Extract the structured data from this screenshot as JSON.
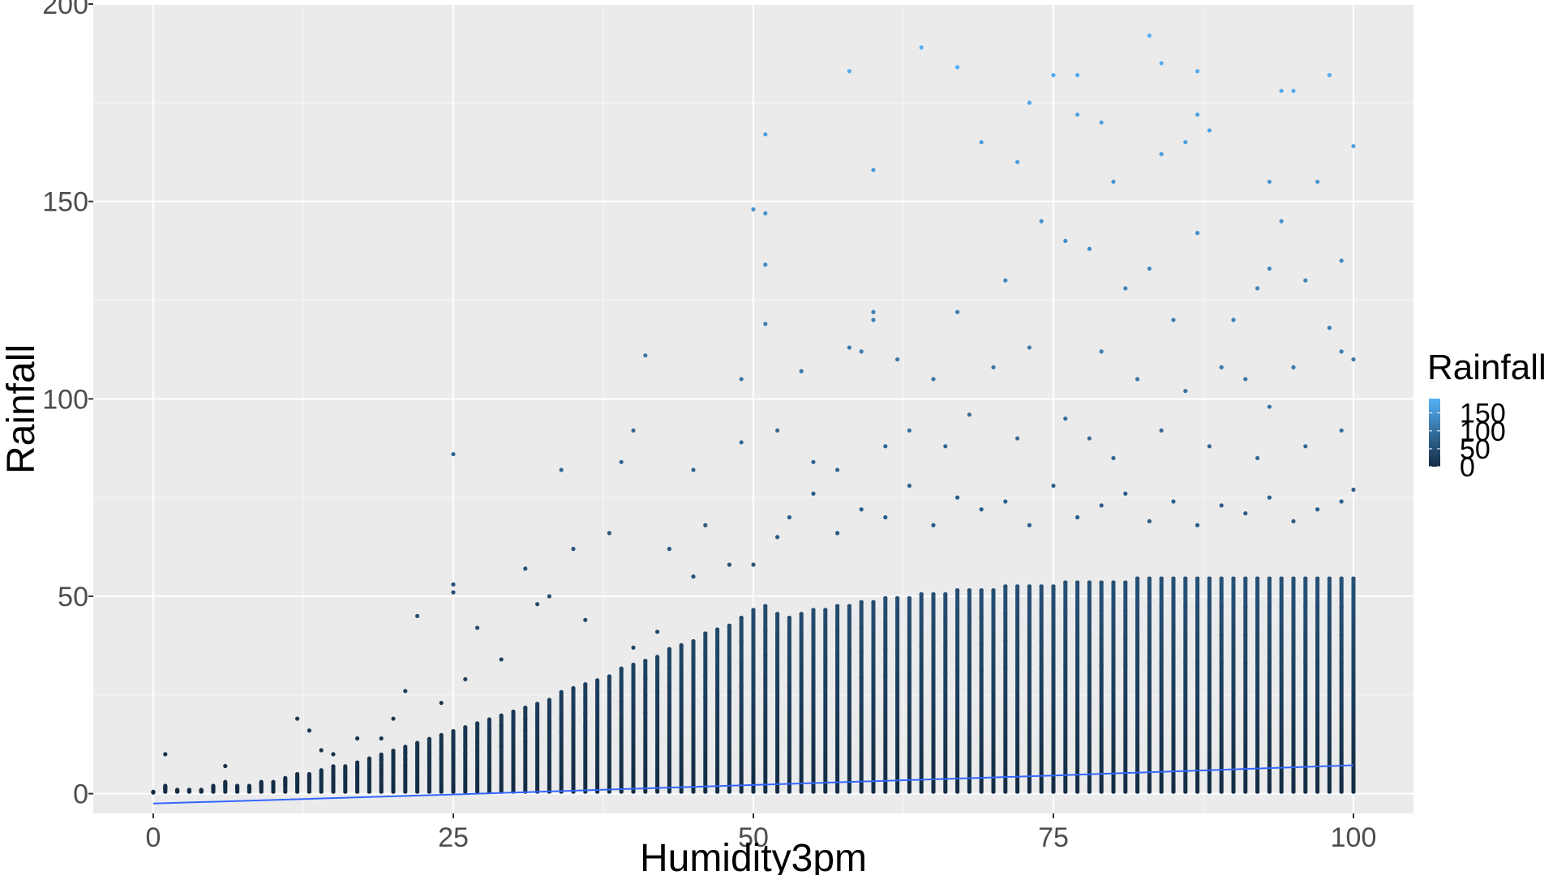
{
  "chart_data": {
    "type": "scatter",
    "title": "",
    "xlabel": "Humidity3pm",
    "ylabel": "Rainfall",
    "xlim": [
      -5,
      105
    ],
    "ylim": [
      -5,
      200
    ],
    "x_ticks": [
      0,
      25,
      50,
      75,
      100
    ],
    "y_ticks": [
      0,
      50,
      100,
      150,
      200
    ],
    "x_tick_labels": [
      "0",
      "25",
      "50",
      "75",
      "100"
    ],
    "y_tick_labels": [
      "0",
      "50",
      "100",
      "150",
      "200"
    ],
    "grid": true,
    "legend": {
      "title": "Rainfall",
      "placement": "right",
      "type": "colorbar",
      "labels": [
        "150",
        "100",
        "50",
        "0"
      ],
      "range": [
        0,
        190
      ]
    },
    "colors": {
      "panel_background": "#ebebeb",
      "grid_major": "#ffffff",
      "low": "#132B43",
      "high": "#56B1F7",
      "trend_line": "#3366FF"
    },
    "series": [
      {
        "kind": "points",
        "note_colour_by": "y",
        "points": [
          [
            58,
            183
          ],
          [
            64,
            189
          ],
          [
            67,
            184
          ],
          [
            75,
            182
          ],
          [
            77,
            182
          ],
          [
            83,
            192
          ],
          [
            84,
            185
          ],
          [
            87,
            183
          ],
          [
            98,
            182
          ],
          [
            51,
            167
          ],
          [
            50,
            148
          ],
          [
            51,
            147
          ],
          [
            60,
            158
          ],
          [
            69,
            165
          ],
          [
            72,
            160
          ],
          [
            73,
            175
          ],
          [
            77,
            172
          ],
          [
            79,
            170
          ],
          [
            80,
            155
          ],
          [
            84,
            162
          ],
          [
            86,
            165
          ],
          [
            87,
            172
          ],
          [
            88,
            168
          ],
          [
            93,
            155
          ],
          [
            94,
            178
          ],
          [
            95,
            178
          ],
          [
            97,
            155
          ],
          [
            100,
            164
          ],
          [
            51,
            134
          ],
          [
            60,
            122
          ],
          [
            60,
            120
          ],
          [
            62,
            110
          ],
          [
            67,
            122
          ],
          [
            71,
            130
          ],
          [
            74,
            145
          ],
          [
            76,
            140
          ],
          [
            78,
            138
          ],
          [
            81,
            128
          ],
          [
            83,
            133
          ],
          [
            85,
            120
          ],
          [
            87,
            142
          ],
          [
            90,
            120
          ],
          [
            92,
            128
          ],
          [
            93,
            133
          ],
          [
            94,
            145
          ],
          [
            96,
            130
          ],
          [
            98,
            118
          ],
          [
            99,
            135
          ],
          [
            41,
            111
          ],
          [
            51,
            119
          ],
          [
            49,
            105
          ],
          [
            54,
            107
          ],
          [
            58,
            113
          ],
          [
            59,
            112
          ],
          [
            65,
            105
          ],
          [
            70,
            108
          ],
          [
            73,
            113
          ],
          [
            79,
            112
          ],
          [
            82,
            105
          ],
          [
            86,
            102
          ],
          [
            89,
            108
          ],
          [
            91,
            105
          ],
          [
            93,
            98
          ],
          [
            95,
            108
          ],
          [
            99,
            112
          ],
          [
            100,
            110
          ],
          [
            25,
            86
          ],
          [
            34,
            82
          ],
          [
            39,
            84
          ],
          [
            40,
            92
          ],
          [
            45,
            82
          ],
          [
            49,
            89
          ],
          [
            52,
            92
          ],
          [
            55,
            84
          ],
          [
            57,
            82
          ],
          [
            61,
            88
          ],
          [
            63,
            92
          ],
          [
            66,
            88
          ],
          [
            68,
            96
          ],
          [
            72,
            90
          ],
          [
            76,
            95
          ],
          [
            78,
            90
          ],
          [
            80,
            85
          ],
          [
            84,
            92
          ],
          [
            88,
            88
          ],
          [
            92,
            85
          ],
          [
            96,
            88
          ],
          [
            99,
            92
          ],
          [
            1,
            10
          ],
          [
            6,
            7
          ],
          [
            12,
            19
          ],
          [
            13,
            16
          ],
          [
            14,
            11
          ],
          [
            15,
            10
          ],
          [
            17,
            14
          ],
          [
            19,
            14
          ],
          [
            20,
            19
          ],
          [
            21,
            26
          ],
          [
            22,
            45
          ],
          [
            24,
            23
          ],
          [
            25,
            53
          ],
          [
            25,
            51
          ],
          [
            26,
            29
          ],
          [
            27,
            42
          ],
          [
            29,
            34
          ],
          [
            31,
            57
          ],
          [
            32,
            48
          ],
          [
            33,
            50
          ],
          [
            35,
            62
          ],
          [
            36,
            44
          ],
          [
            38,
            66
          ],
          [
            40,
            37
          ],
          [
            42,
            41
          ],
          [
            43,
            62
          ],
          [
            45,
            55
          ],
          [
            46,
            68
          ],
          [
            48,
            58
          ],
          [
            50,
            58
          ],
          [
            52,
            65
          ],
          [
            53,
            70
          ],
          [
            55,
            76
          ],
          [
            57,
            66
          ],
          [
            59,
            72
          ],
          [
            61,
            70
          ],
          [
            63,
            78
          ],
          [
            65,
            68
          ],
          [
            67,
            75
          ],
          [
            69,
            72
          ],
          [
            71,
            74
          ],
          [
            73,
            68
          ],
          [
            75,
            78
          ],
          [
            77,
            70
          ],
          [
            79,
            73
          ],
          [
            81,
            76
          ],
          [
            83,
            69
          ],
          [
            85,
            74
          ],
          [
            87,
            68
          ],
          [
            89,
            73
          ],
          [
            91,
            71
          ],
          [
            93,
            75
          ],
          [
            95,
            69
          ],
          [
            97,
            72
          ],
          [
            99,
            74
          ],
          [
            100,
            77
          ]
        ]
      },
      {
        "kind": "column_extents",
        "note": "dense vertical strips of points at each integer humidity value, from 0 up to the given rainfall",
        "x": [
          0,
          1,
          2,
          3,
          4,
          5,
          6,
          7,
          8,
          9,
          10,
          11,
          12,
          13,
          14,
          15,
          16,
          17,
          18,
          19,
          20,
          21,
          22,
          23,
          24,
          25,
          26,
          27,
          28,
          29,
          30,
          31,
          32,
          33,
          34,
          35,
          36,
          37,
          38,
          39,
          40,
          41,
          42,
          43,
          44,
          45,
          46,
          47,
          48,
          49,
          50,
          51,
          52,
          53,
          54,
          55,
          56,
          57,
          58,
          59,
          60,
          61,
          62,
          63,
          64,
          65,
          66,
          67,
          68,
          69,
          70,
          71,
          72,
          73,
          74,
          75,
          76,
          77,
          78,
          79,
          80,
          81,
          82,
          83,
          84,
          85,
          86,
          87,
          88,
          89,
          90,
          91,
          92,
          93,
          94,
          95,
          96,
          97,
          98,
          99,
          100
        ],
        "y_max": [
          0.5,
          2,
          1,
          1,
          1,
          2,
          3,
          2,
          2,
          3,
          3,
          4,
          5,
          5,
          6,
          7,
          7,
          8,
          9,
          10,
          11,
          12,
          13,
          14,
          15,
          16,
          17,
          18,
          19,
          20,
          21,
          22,
          23,
          24,
          26,
          27,
          28,
          29,
          30,
          32,
          33,
          34,
          35,
          37,
          38,
          39,
          41,
          42,
          43,
          45,
          47,
          48,
          46,
          45,
          46,
          47,
          47,
          48,
          48,
          49,
          49,
          50,
          50,
          50,
          51,
          51,
          51,
          52,
          52,
          52,
          52,
          53,
          53,
          53,
          53,
          53,
          54,
          54,
          54,
          54,
          54,
          54,
          55,
          55,
          55,
          55,
          55,
          55,
          55,
          55,
          55,
          55,
          55,
          55,
          55,
          55,
          55,
          55,
          55,
          55,
          55
        ]
      },
      {
        "kind": "line",
        "x": [
          0,
          25,
          50,
          75,
          100
        ],
        "y": [
          -2.5,
          -0.2,
          2.2,
          4.6,
          7.2
        ]
      }
    ]
  }
}
